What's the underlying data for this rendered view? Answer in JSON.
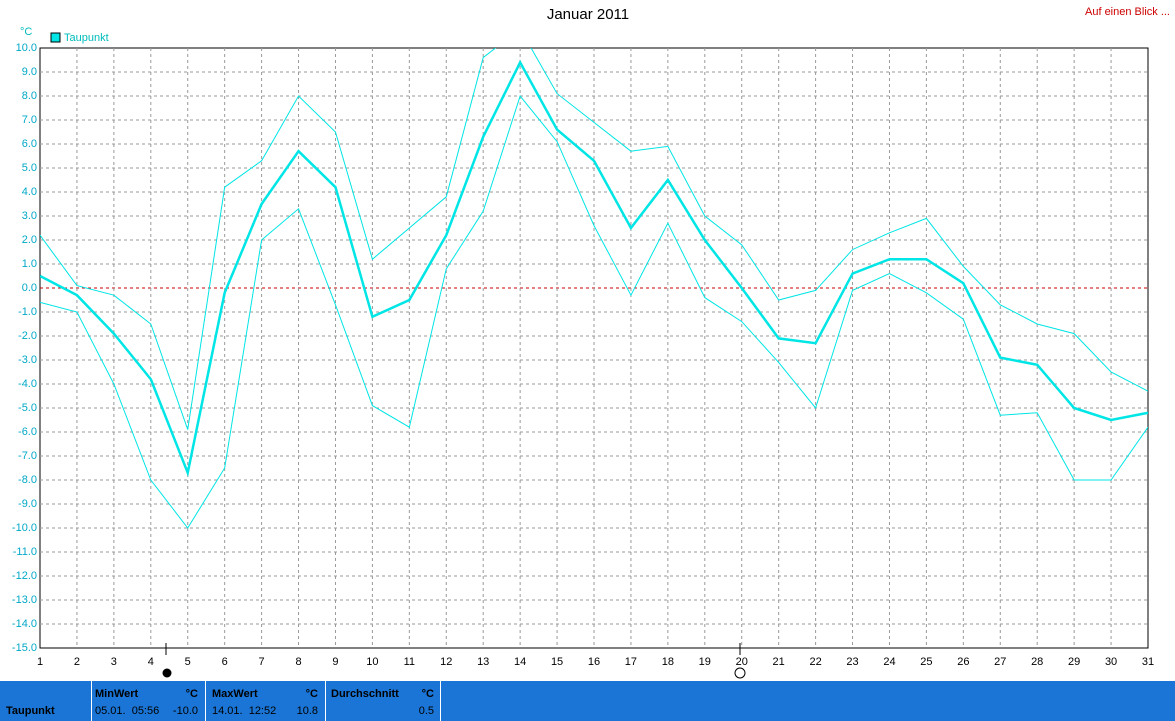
{
  "chart_data": {
    "type": "line",
    "title": "Januar 2011",
    "y_unit": "°C",
    "link": "Auf einen Blick ...",
    "x": [
      1,
      2,
      3,
      4,
      5,
      6,
      7,
      8,
      9,
      10,
      11,
      12,
      13,
      14,
      15,
      16,
      17,
      18,
      19,
      20,
      21,
      22,
      23,
      24,
      25,
      26,
      27,
      28,
      29,
      30,
      31
    ],
    "xlim": [
      1,
      31
    ],
    "xticks": [
      1,
      2,
      3,
      4,
      5,
      6,
      7,
      8,
      9,
      10,
      11,
      12,
      13,
      14,
      15,
      16,
      17,
      18,
      19,
      20,
      21,
      22,
      23,
      24,
      25,
      26,
      27,
      28,
      29,
      30,
      31
    ],
    "series": [
      {
        "name": "Taupunkt",
        "color": "#00e5e5",
        "style": "thick",
        "values": [
          0.5,
          -0.3,
          -1.9,
          -3.8,
          -7.7,
          -0.2,
          3.5,
          5.7,
          4.2,
          -1.2,
          -0.5,
          2.2,
          6.3,
          9.4,
          6.6,
          5.3,
          2.5,
          4.5,
          2.0,
          0.0,
          -2.1,
          -2.3,
          0.6,
          1.2,
          1.2,
          0.2,
          -2.9,
          -3.2,
          -5.0,
          -5.5,
          -5.2
        ]
      },
      {
        "color": "#00e5e5",
        "style": "thin",
        "values": [
          2.2,
          0.1,
          -0.3,
          -1.5,
          -5.9,
          4.2,
          5.3,
          8.0,
          6.5,
          1.2,
          2.5,
          3.8,
          9.6,
          10.8,
          8.1,
          6.9,
          5.7,
          5.9,
          3.0,
          1.8,
          -0.5,
          -0.1,
          1.6,
          2.3,
          2.9,
          0.9,
          -0.7,
          -1.5,
          -1.9,
          -3.5,
          -4.3
        ]
      },
      {
        "color": "#00e5e5",
        "style": "thin",
        "values": [
          -0.6,
          -1.0,
          -4.0,
          -8.0,
          -10.0,
          -7.5,
          2.0,
          3.3,
          -0.7,
          -4.9,
          -5.8,
          0.8,
          3.2,
          8.0,
          6.1,
          2.6,
          -0.3,
          2.7,
          -0.4,
          -1.4,
          -3.1,
          -5.0,
          -0.1,
          0.6,
          -0.2,
          -1.3,
          -5.3,
          -5.2,
          -8.0,
          -8.0,
          -5.8
        ]
      }
    ],
    "ylim": [
      -15,
      10
    ],
    "yticks": [
      {
        "value": 10,
        "label": "10.0"
      },
      {
        "value": 9,
        "label": "9.0"
      },
      {
        "value": 8,
        "label": "8.0"
      },
      {
        "value": 7,
        "label": "7.0"
      },
      {
        "value": 6,
        "label": "6.0"
      },
      {
        "value": 5,
        "label": "5.0"
      },
      {
        "value": 4,
        "label": "4.0"
      },
      {
        "value": 3,
        "label": "3.0"
      },
      {
        "value": 2,
        "label": "2.0"
      },
      {
        "value": 1,
        "label": "1.0"
      },
      {
        "value": 0,
        "label": "0.0"
      },
      {
        "value": -1,
        "label": "-1.0"
      },
      {
        "value": -2,
        "label": "-2.0"
      },
      {
        "value": -3,
        "label": "-3.0"
      },
      {
        "value": -4,
        "label": "-4.0"
      },
      {
        "value": -5,
        "label": "-5.0"
      },
      {
        "value": -6,
        "label": "-6.0"
      },
      {
        "value": -7,
        "label": "-7.0"
      },
      {
        "value": -8,
        "label": "-8.0"
      },
      {
        "value": -9,
        "label": "-9.0"
      },
      {
        "value": -10,
        "label": "-10.0"
      },
      {
        "value": -11,
        "label": "-11.0"
      },
      {
        "value": -12,
        "label": "-12.0"
      },
      {
        "value": -13,
        "label": "-13.0"
      },
      {
        "value": -14,
        "label": "-14.0"
      },
      {
        "value": -15,
        "label": "-15.0"
      }
    ],
    "grid": true,
    "zero_line_color": "#cc0000",
    "legend": "top-left"
  },
  "summary": {
    "label": "Taupunkt",
    "min": {
      "title": "MinWert",
      "unit": "°C",
      "time": "05.01.  05:56",
      "value": "-10.0"
    },
    "max": {
      "title": "MaxWert",
      "unit": "°C",
      "time": "14.01.  12:52",
      "value": "10.8"
    },
    "avg": {
      "title": "Durchschnitt",
      "unit": "°C",
      "value": "0.5"
    }
  }
}
